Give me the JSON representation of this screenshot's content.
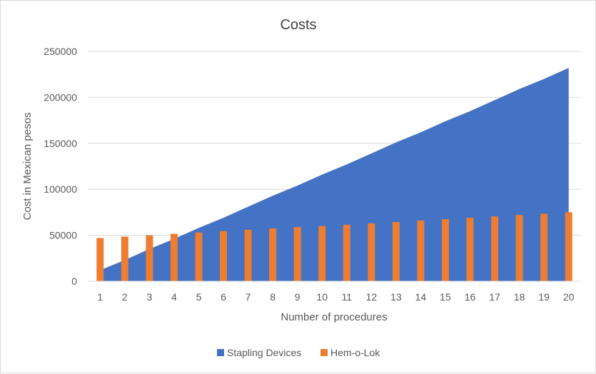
{
  "chart_data": {
    "type": "area+bar",
    "title": "Costs",
    "xlabel": "Number of procedures",
    "ylabel": "Cost in Mexican pesos",
    "categories": [
      "1",
      "2",
      "3",
      "4",
      "5",
      "6",
      "7",
      "8",
      "9",
      "10",
      "11",
      "12",
      "13",
      "14",
      "15",
      "16",
      "17",
      "18",
      "19",
      "20"
    ],
    "ylim": [
      0,
      250000
    ],
    "yticks": [
      "0",
      "50000",
      "100000",
      "150000",
      "200000",
      "250000"
    ],
    "grid": true,
    "legend_position": "bottom",
    "series": [
      {
        "name": "Stapling Devices",
        "kind": "area",
        "color": "#4472c4",
        "values": [
          12000,
          23000,
          35000,
          46000,
          58000,
          69000,
          81000,
          93000,
          104000,
          116000,
          127000,
          139000,
          151000,
          162000,
          174000,
          185000,
          197000,
          209000,
          220000,
          232000
        ]
      },
      {
        "name": "Hem-o-Lok",
        "kind": "bar",
        "color": "#ed7d31",
        "values": [
          47000,
          48500,
          50000,
          51500,
          53000,
          54500,
          56000,
          57500,
          59000,
          60000,
          61500,
          63000,
          64500,
          66000,
          67500,
          69000,
          70500,
          72000,
          73500,
          75000
        ]
      }
    ]
  }
}
